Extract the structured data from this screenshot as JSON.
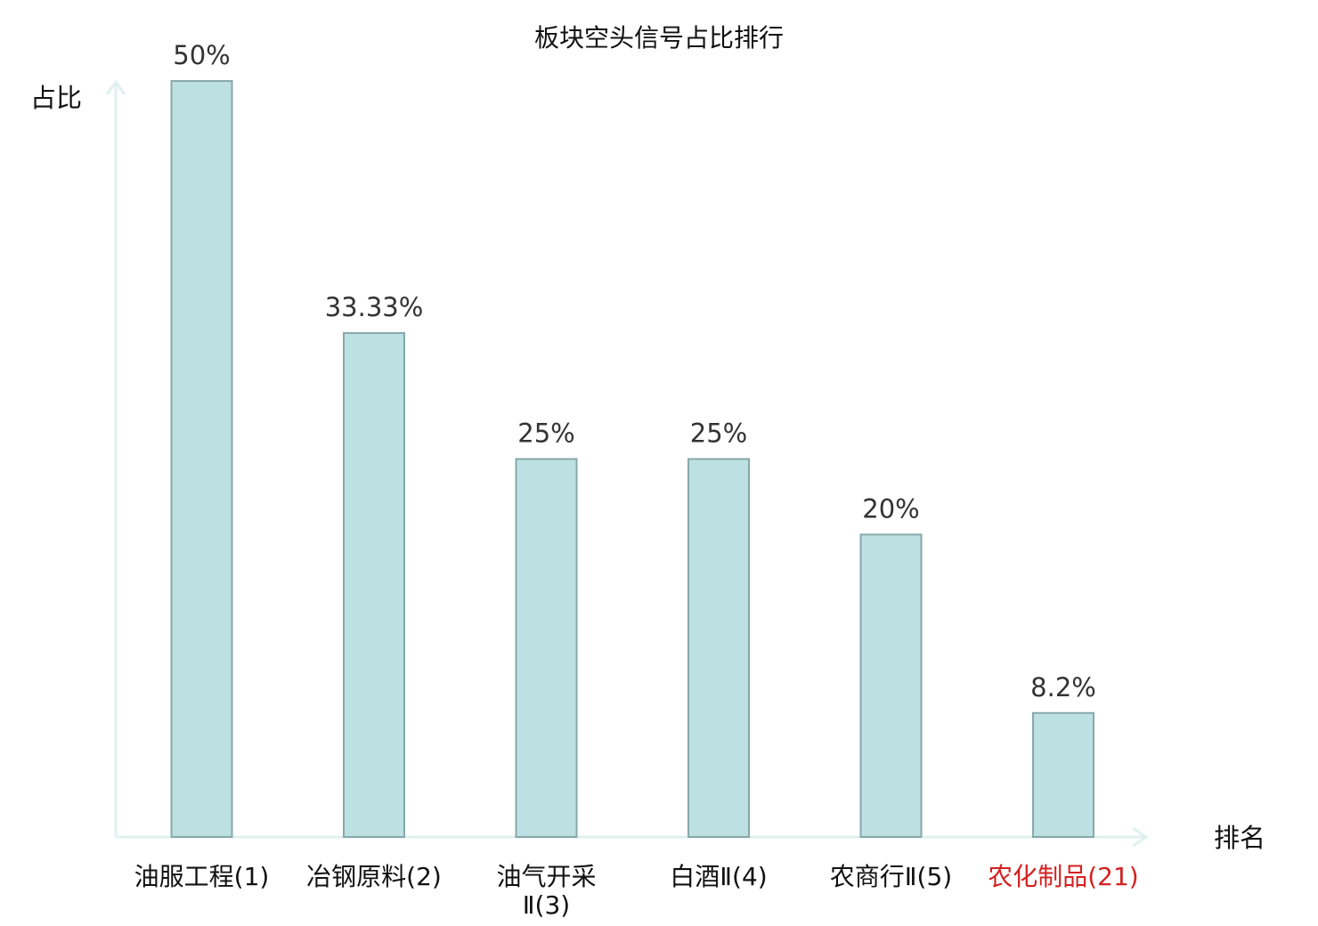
{
  "chart_data": {
    "type": "bar",
    "title": "板块空头信号占比排行",
    "xlabel": "排名",
    "ylabel": "占比",
    "ylim": [
      0,
      50
    ],
    "grid": false,
    "categories": [
      [
        "油服工程(1)"
      ],
      [
        "冶钢原料(2)"
      ],
      [
        "油气开采",
        "Ⅱ(3)"
      ],
      [
        "白酒Ⅱ(4)"
      ],
      [
        "农商行Ⅱ(5)"
      ],
      [
        "农化制品(21)"
      ]
    ],
    "values": [
      50,
      33.33,
      25,
      25,
      20,
      8.2
    ],
    "value_labels": [
      "50%",
      "33.33%",
      "25%",
      "25%",
      "20%",
      "8.2%"
    ],
    "highlight_index": 5,
    "colors": {
      "bar_fill": "#bde0e3",
      "bar_stroke": "#87a8aa",
      "axis": "#dff1ee",
      "label": "#111111",
      "value_label": "#333333",
      "highlight": "#d42020"
    }
  }
}
